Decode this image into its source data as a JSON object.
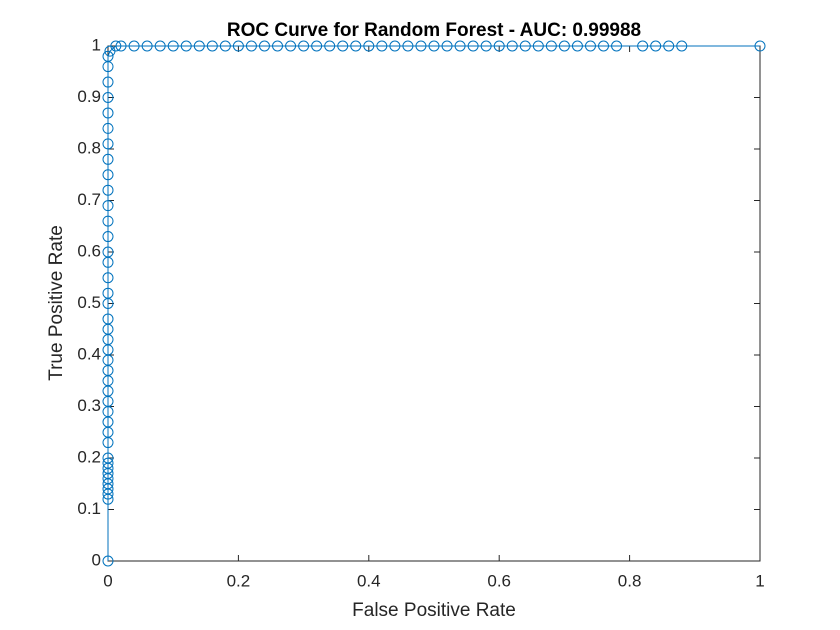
{
  "chart_data": {
    "type": "line",
    "title": "ROC Curve for Random Forest - AUC: 0.99988",
    "x_label": "False Positive Rate",
    "y_label": "True Positive Rate",
    "color": "#0072bd",
    "marker": "circle",
    "grid": false,
    "xlim": [
      0,
      1
    ],
    "ylim": [
      0,
      1
    ],
    "xticks": [
      0,
      0.2,
      0.4,
      0.6,
      0.8,
      1
    ],
    "yticks": [
      0,
      0.1,
      0.2,
      0.3,
      0.4,
      0.5,
      0.6,
      0.7,
      0.8,
      0.9,
      1
    ],
    "x": [
      0,
      0,
      0,
      0,
      0,
      0,
      0,
      0,
      0,
      0,
      0,
      0,
      0,
      0,
      0,
      0,
      0,
      0,
      0,
      0,
      0,
      0,
      0,
      0,
      0,
      0,
      0,
      0,
      0,
      0,
      0,
      0,
      0,
      0,
      0,
      0,
      0,
      0,
      0,
      0,
      0,
      0.003,
      0.012,
      0.02,
      0.04,
      0.06,
      0.08,
      0.1,
      0.12,
      0.14,
      0.16,
      0.18,
      0.2,
      0.22,
      0.24,
      0.26,
      0.28,
      0.3,
      0.32,
      0.34,
      0.36,
      0.38,
      0.4,
      0.42,
      0.44,
      0.46,
      0.48,
      0.5,
      0.52,
      0.54,
      0.56,
      0.58,
      0.6,
      0.62,
      0.64,
      0.66,
      0.68,
      0.7,
      0.72,
      0.74,
      0.76,
      0.78,
      0.82,
      0.84,
      0.86,
      0.88,
      1
    ],
    "values": [
      0,
      0.12,
      0.13,
      0.14,
      0.15,
      0.16,
      0.17,
      0.18,
      0.19,
      0.2,
      0.23,
      0.25,
      0.27,
      0.29,
      0.31,
      0.33,
      0.35,
      0.37,
      0.39,
      0.41,
      0.43,
      0.45,
      0.47,
      0.5,
      0.52,
      0.55,
      0.58,
      0.6,
      0.63,
      0.66,
      0.69,
      0.72,
      0.75,
      0.78,
      0.81,
      0.84,
      0.87,
      0.9,
      0.93,
      0.96,
      0.98,
      0.99,
      1,
      1,
      1,
      1,
      1,
      1,
      1,
      1,
      1,
      1,
      1,
      1,
      1,
      1,
      1,
      1,
      1,
      1,
      1,
      1,
      1,
      1,
      1,
      1,
      1,
      1,
      1,
      1,
      1,
      1,
      1,
      1,
      1,
      1,
      1,
      1,
      1,
      1,
      1,
      1,
      1,
      1,
      1,
      1,
      1
    ]
  }
}
